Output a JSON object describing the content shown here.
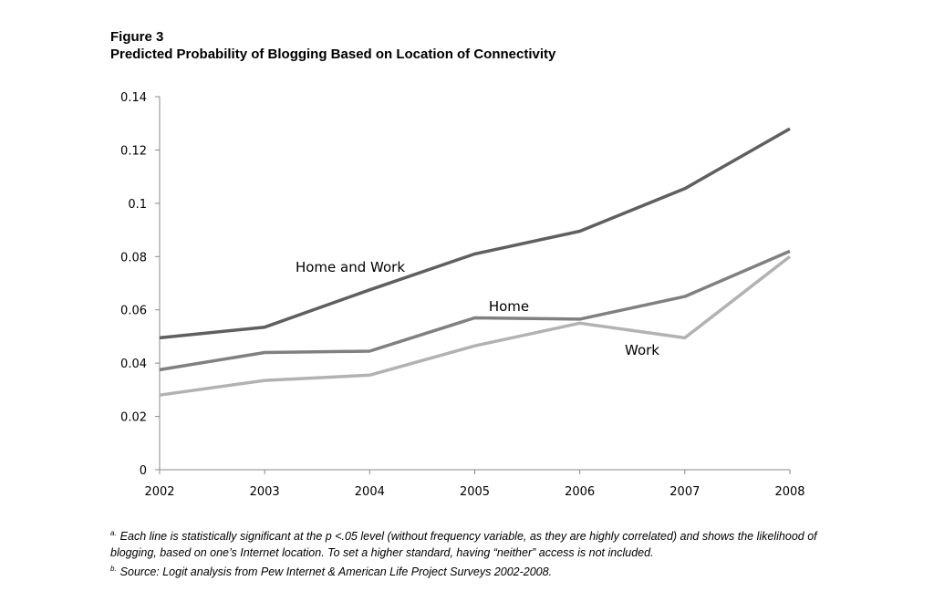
{
  "figure": {
    "label": "Figure 3",
    "title": "Predicted Probability of Blogging Based on Location of Connectivity"
  },
  "chart_data": {
    "type": "line",
    "x": [
      "2002",
      "2003",
      "2004",
      "2005",
      "2006",
      "2007",
      "2008"
    ],
    "yticks": [
      "0",
      "0.02",
      "0.04",
      "0.06",
      "0.08",
      "0.1",
      "0.12",
      "0.14"
    ],
    "ylim": [
      0,
      0.14
    ],
    "grid": false,
    "legend": "inline labels",
    "series": [
      {
        "name": "Home and Work",
        "color": "#5f5f5f",
        "values": [
          0.0495,
          0.0535,
          0.0675,
          0.081,
          0.0895,
          0.1055,
          0.128
        ]
      },
      {
        "name": "Home",
        "color": "#808080",
        "values": [
          0.0375,
          0.044,
          0.0445,
          0.057,
          0.0565,
          0.065,
          0.082
        ]
      },
      {
        "name": "Work",
        "color": "#b2b2b2",
        "values": [
          0.028,
          0.0335,
          0.0355,
          0.0465,
          0.055,
          0.0495,
          0.08
        ]
      }
    ]
  },
  "notes": {
    "a_marker": "a.",
    "a_text": "Each line is statistically significant at the p <.05 level (without frequency variable, as they are highly correlated) and shows the likelihood of blogging, based on one’s Internet location. To set a higher standard, having “neither” access is not included.",
    "b_marker": "b.",
    "b_text": "Source: Logit analysis from Pew Internet & American Life Project Surveys 2002-2008."
  }
}
